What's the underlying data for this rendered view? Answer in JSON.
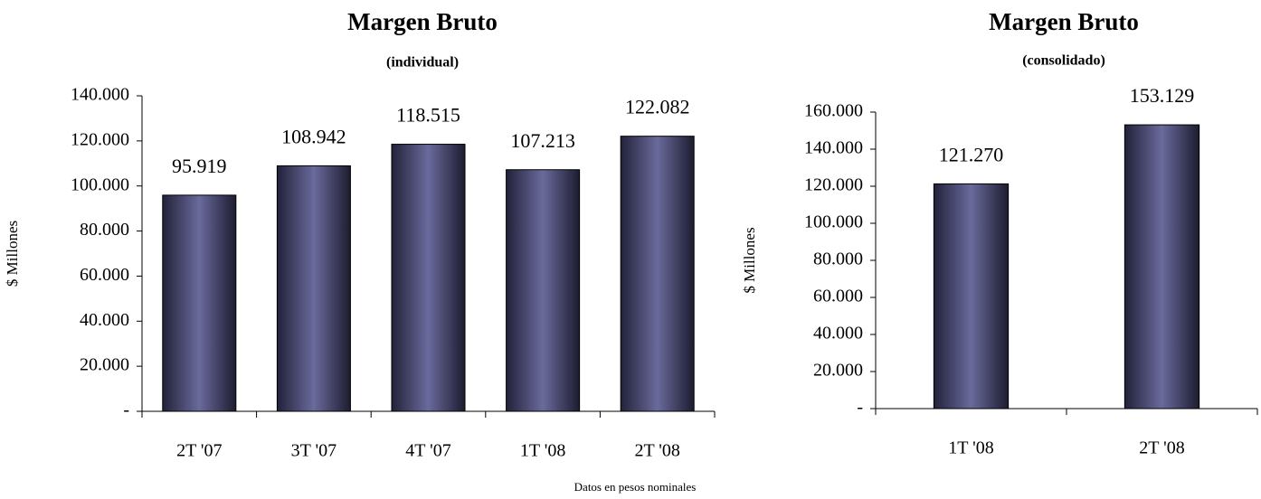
{
  "chart_data": [
    {
      "type": "bar",
      "title": "Margen Bruto",
      "subtitle": "(individual)",
      "ylabel": "$ Millones",
      "categories": [
        "2T '07",
        "3T '07",
        "4T '07",
        "1T '08",
        "2T '08"
      ],
      "values": [
        95919,
        108942,
        118515,
        107213,
        122082
      ],
      "value_labels": [
        "95.919",
        "108.942",
        "118.515",
        "107.213",
        "122.082"
      ],
      "color": "#5a5a8a",
      "ylim": [
        0,
        140000
      ],
      "yticks": [
        {
          "value": 0,
          "label": "-"
        },
        {
          "value": 20000,
          "label": "20.000"
        },
        {
          "value": 40000,
          "label": "40.000"
        },
        {
          "value": 60000,
          "label": "60.000"
        },
        {
          "value": 80000,
          "label": "80.000"
        },
        {
          "value": 100000,
          "label": "100.000"
        },
        {
          "value": 120000,
          "label": "120.000"
        },
        {
          "value": 140000,
          "label": "140.000"
        }
      ]
    },
    {
      "type": "bar",
      "title": "Margen Bruto",
      "subtitle": "(consolidado)",
      "ylabel": "$ Millones",
      "categories": [
        "1T '08",
        "2T '08"
      ],
      "values": [
        121270,
        153129
      ],
      "value_labels": [
        "121.270",
        "153.129"
      ],
      "color": "#5a5a8a",
      "ylim": [
        0,
        160000
      ],
      "yticks": [
        {
          "value": 0,
          "label": "-"
        },
        {
          "value": 20000,
          "label": "20.000"
        },
        {
          "value": 40000,
          "label": "40.000"
        },
        {
          "value": 60000,
          "label": "60.000"
        },
        {
          "value": 80000,
          "label": "80.000"
        },
        {
          "value": 100000,
          "label": "100.000"
        },
        {
          "value": 120000,
          "label": "120.000"
        },
        {
          "value": 140000,
          "label": "140.000"
        },
        {
          "value": 160000,
          "label": "160.000"
        }
      ]
    }
  ],
  "note": "Datos en pesos nominales"
}
